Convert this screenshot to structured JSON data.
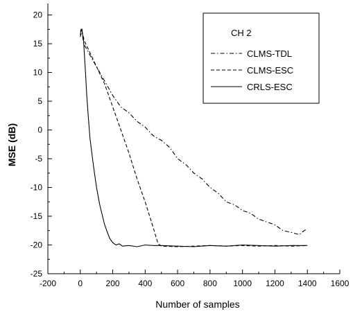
{
  "chart_data": {
    "type": "line",
    "xlabel": "Number of samples",
    "ylabel": "MSE (dB)",
    "xlim": [
      -200,
      1600
    ],
    "ylim": [
      -25,
      22
    ],
    "xticks": [
      -200,
      0,
      200,
      400,
      600,
      800,
      1000,
      1200,
      1400,
      1600
    ],
    "yticks": [
      -25,
      -20,
      -15,
      -10,
      -5,
      0,
      5,
      10,
      15,
      20
    ],
    "grid": false,
    "legend": {
      "title": "CH 2",
      "placement": "top-right",
      "entries": [
        "CLMS-TDL",
        "CLMS-ESC",
        "CRLS-ESC"
      ]
    },
    "series": [
      {
        "name": "CLMS-TDL",
        "style": "dashdot",
        "color": "#000000",
        "x": [
          0,
          10,
          20,
          50,
          100,
          150,
          200,
          250,
          300,
          350,
          400,
          450,
          500,
          550,
          600,
          650,
          700,
          750,
          800,
          850,
          900,
          950,
          1000,
          1050,
          1100,
          1150,
          1200,
          1250,
          1300,
          1350,
          1380,
          1400
        ],
        "y": [
          17.2,
          17.5,
          15,
          13.5,
          11,
          8.5,
          6,
          4,
          3,
          1.5,
          0.5,
          -1,
          -1.8,
          -3,
          -5,
          -6,
          -7.5,
          -8.5,
          -10,
          -11,
          -12.5,
          -13,
          -14,
          -14.5,
          -15.5,
          -16,
          -16.5,
          -17.5,
          -17.8,
          -18.2,
          -17.5,
          -17.2
        ]
      },
      {
        "name": "CLMS-ESC",
        "style": "dashed",
        "color": "#000000",
        "x": [
          0,
          10,
          25,
          50,
          100,
          150,
          200,
          250,
          300,
          350,
          400,
          450,
          480,
          500,
          600,
          700,
          800,
          900,
          1000,
          1100,
          1200,
          1300,
          1400
        ],
        "y": [
          16.2,
          17.2,
          15.5,
          14,
          11,
          8,
          4,
          0,
          -4,
          -8.5,
          -12.5,
          -17,
          -19.8,
          -20.2,
          -20.3,
          -20.2,
          -20.1,
          -20.2,
          -20.1,
          -20.2,
          -20.1,
          -20.2,
          -20.1
        ]
      },
      {
        "name": "CRLS-ESC",
        "style": "solid",
        "color": "#000000",
        "x": [
          0,
          5,
          10,
          20,
          30,
          40,
          50,
          60,
          80,
          100,
          120,
          150,
          180,
          200,
          220,
          240,
          260,
          300,
          350,
          400,
          450,
          500,
          600,
          700,
          800,
          900,
          1000,
          1100,
          1200,
          1300,
          1400
        ],
        "y": [
          16.5,
          17.5,
          17.5,
          15.5,
          11,
          6,
          2,
          -1.5,
          -6,
          -10,
          -13,
          -16.5,
          -18.8,
          -19.6,
          -20,
          -19.8,
          -20.2,
          -20.1,
          -20.3,
          -20.0,
          -20.1,
          -20.1,
          -20.2,
          -20.3,
          -20.1,
          -20.2,
          -20.0,
          -20.1,
          -20.2,
          -20.1,
          -20.1
        ]
      }
    ]
  }
}
